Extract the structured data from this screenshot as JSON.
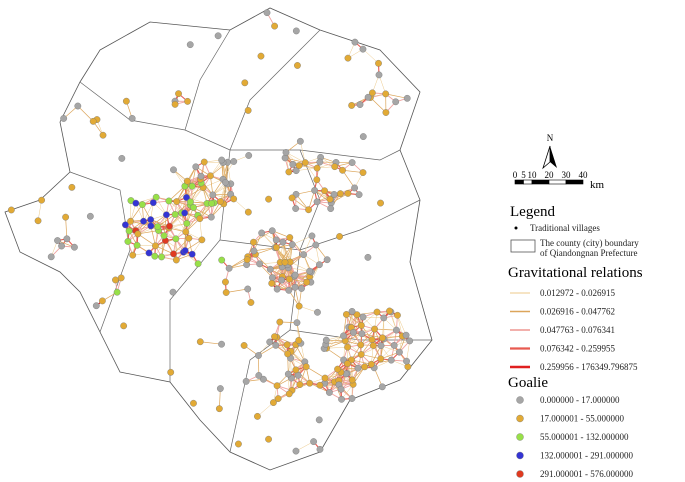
{
  "legend": {
    "title": "Legend",
    "villages": "Traditional villages",
    "boundary": [
      "The county (city) boundary",
      "of Qiandongnan Prefecture"
    ]
  },
  "relations": {
    "title": "Gravitational relations",
    "items": [
      {
        "label": "0.012972 - 0.026915",
        "color": "#ecc98a"
      },
      {
        "label": "0.026916 - 0.047762",
        "color": "#dca55a"
      },
      {
        "label": "0.047763 - 0.076341",
        "color": "#f0a4a0"
      },
      {
        "label": "0.076342 - 0.259955",
        "color": "#e85a50"
      },
      {
        "label": "0.259956 - 176349.796875",
        "color": "#e02020"
      }
    ]
  },
  "goalie": {
    "title": "Goalie",
    "items": [
      {
        "label": "0.000000 - 17.000000",
        "color": "#a6a6a6"
      },
      {
        "label": "17.000001 - 55.000000",
        "color": "#e2aa35"
      },
      {
        "label": "55.000001 - 132.000000",
        "color": "#98e048"
      },
      {
        "label": "132.000001 - 291.000000",
        "color": "#3434d4"
      },
      {
        "label": "291.000001 - 576.000000",
        "color": "#e03a20"
      }
    ]
  },
  "north": "N",
  "scale": {
    "labels": [
      0,
      5,
      10,
      20,
      30,
      40
    ],
    "unit": "km"
  }
}
